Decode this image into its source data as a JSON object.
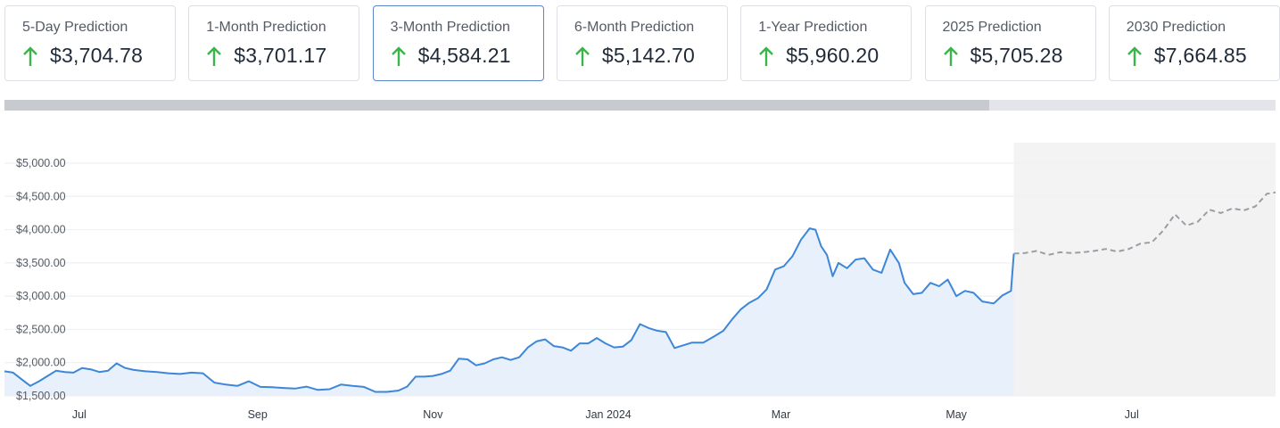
{
  "cards": [
    {
      "label": "5-Day Prediction",
      "value": "$3,704.78",
      "arrow_icon": "arrow-up-icon",
      "active": false
    },
    {
      "label": "1-Month Prediction",
      "value": "$3,701.17",
      "arrow_icon": "arrow-up-icon",
      "active": false
    },
    {
      "label": "3-Month Prediction",
      "value": "$4,584.21",
      "arrow_icon": "arrow-up-icon",
      "active": true
    },
    {
      "label": "6-Month Prediction",
      "value": "$5,142.70",
      "arrow_icon": "arrow-up-icon",
      "active": false
    },
    {
      "label": "1-Year Prediction",
      "value": "$5,960.20",
      "arrow_icon": "arrow-up-icon",
      "active": false
    },
    {
      "label": "2025 Prediction",
      "value": "$5,705.28",
      "arrow_icon": "arrow-up-icon",
      "active": false
    },
    {
      "label": "2030 Prediction",
      "value": "$7,664.85",
      "arrow_icon": "arrow-up-icon",
      "active": false
    }
  ],
  "colors": {
    "up_arrow": "#3ab54a",
    "active_border": "#5b87c9",
    "historical_line": "#3d86d8",
    "historical_fill": "#e8f0fb",
    "forecast_line": "#9a9ea5",
    "forecast_fill": "#f2f2f2",
    "grid": "#eceef1"
  },
  "scrollbar": {
    "thumb_fraction": 0.775
  },
  "chart_data": {
    "type": "line",
    "title": "",
    "xlabel": "",
    "ylabel": "",
    "ylim": [
      1400,
      5150
    ],
    "xlim": [
      "2023-06-05",
      "2024-08-20"
    ],
    "grid": true,
    "yticks": [
      1500,
      2000,
      2500,
      3000,
      3500,
      4000,
      4500,
      5000
    ],
    "ytick_labels": [
      "$1,500.00",
      "$2,000.00",
      "$2,500.00",
      "$3,000.00",
      "$3,500.00",
      "$4,000.00",
      "$4,500.00",
      "$5,000.00"
    ],
    "xticks": [
      {
        "date": "2023-07-01",
        "label": "Jul"
      },
      {
        "date": "2023-09-01",
        "label": "Sep"
      },
      {
        "date": "2023-11-01",
        "label": "Nov"
      },
      {
        "date": "2024-01-01",
        "label": "Jan 2024"
      },
      {
        "date": "2024-03-01",
        "label": "Mar"
      },
      {
        "date": "2024-05-01",
        "label": "May"
      },
      {
        "date": "2024-07-01",
        "label": "Jul"
      }
    ],
    "series": [
      {
        "style": "solid",
        "points": [
          [
            "2023-06-05",
            1870
          ],
          [
            "2023-06-08",
            1850
          ],
          [
            "2023-06-11",
            1750
          ],
          [
            "2023-06-14",
            1650
          ],
          [
            "2023-06-17",
            1720
          ],
          [
            "2023-06-20",
            1800
          ],
          [
            "2023-06-23",
            1880
          ],
          [
            "2023-06-26",
            1860
          ],
          [
            "2023-06-29",
            1850
          ],
          [
            "2023-07-02",
            1920
          ],
          [
            "2023-07-05",
            1900
          ],
          [
            "2023-07-08",
            1860
          ],
          [
            "2023-07-11",
            1880
          ],
          [
            "2023-07-14",
            1990
          ],
          [
            "2023-07-17",
            1920
          ],
          [
            "2023-07-20",
            1890
          ],
          [
            "2023-07-24",
            1870
          ],
          [
            "2023-07-28",
            1860
          ],
          [
            "2023-08-01",
            1840
          ],
          [
            "2023-08-05",
            1830
          ],
          [
            "2023-08-09",
            1850
          ],
          [
            "2023-08-13",
            1840
          ],
          [
            "2023-08-17",
            1700
          ],
          [
            "2023-08-21",
            1670
          ],
          [
            "2023-08-25",
            1650
          ],
          [
            "2023-08-29",
            1720
          ],
          [
            "2023-09-02",
            1635
          ],
          [
            "2023-09-06",
            1630
          ],
          [
            "2023-09-10",
            1620
          ],
          [
            "2023-09-14",
            1610
          ],
          [
            "2023-09-18",
            1640
          ],
          [
            "2023-09-22",
            1590
          ],
          [
            "2023-09-26",
            1600
          ],
          [
            "2023-09-30",
            1670
          ],
          [
            "2023-10-04",
            1650
          ],
          [
            "2023-10-08",
            1635
          ],
          [
            "2023-10-12",
            1560
          ],
          [
            "2023-10-16",
            1560
          ],
          [
            "2023-10-20",
            1580
          ],
          [
            "2023-10-23",
            1640
          ],
          [
            "2023-10-26",
            1790
          ],
          [
            "2023-10-29",
            1790
          ],
          [
            "2023-11-01",
            1800
          ],
          [
            "2023-11-04",
            1830
          ],
          [
            "2023-11-07",
            1880
          ],
          [
            "2023-11-10",
            2060
          ],
          [
            "2023-11-13",
            2050
          ],
          [
            "2023-11-16",
            1960
          ],
          [
            "2023-11-19",
            1990
          ],
          [
            "2023-11-22",
            2050
          ],
          [
            "2023-11-25",
            2080
          ],
          [
            "2023-11-28",
            2040
          ],
          [
            "2023-12-01",
            2080
          ],
          [
            "2023-12-04",
            2230
          ],
          [
            "2023-12-07",
            2320
          ],
          [
            "2023-12-10",
            2350
          ],
          [
            "2023-12-13",
            2250
          ],
          [
            "2023-12-16",
            2230
          ],
          [
            "2023-12-19",
            2180
          ],
          [
            "2023-12-22",
            2290
          ],
          [
            "2023-12-25",
            2290
          ],
          [
            "2023-12-28",
            2370
          ],
          [
            "2023-12-31",
            2290
          ],
          [
            "2024-01-03",
            2230
          ],
          [
            "2024-01-06",
            2240
          ],
          [
            "2024-01-09",
            2340
          ],
          [
            "2024-01-12",
            2580
          ],
          [
            "2024-01-15",
            2520
          ],
          [
            "2024-01-18",
            2480
          ],
          [
            "2024-01-21",
            2460
          ],
          [
            "2024-01-24",
            2220
          ],
          [
            "2024-01-27",
            2260
          ],
          [
            "2024-01-30",
            2300
          ],
          [
            "2024-02-03",
            2300
          ],
          [
            "2024-02-07",
            2400
          ],
          [
            "2024-02-10",
            2480
          ],
          [
            "2024-02-13",
            2650
          ],
          [
            "2024-02-16",
            2800
          ],
          [
            "2024-02-19",
            2900
          ],
          [
            "2024-02-22",
            2970
          ],
          [
            "2024-02-25",
            3100
          ],
          [
            "2024-02-28",
            3400
          ],
          [
            "2024-03-02",
            3450
          ],
          [
            "2024-03-05",
            3600
          ],
          [
            "2024-03-08",
            3850
          ],
          [
            "2024-03-11",
            4020
          ],
          [
            "2024-03-13",
            4000
          ],
          [
            "2024-03-15",
            3750
          ],
          [
            "2024-03-17",
            3620
          ],
          [
            "2024-03-19",
            3300
          ],
          [
            "2024-03-21",
            3500
          ],
          [
            "2024-03-24",
            3420
          ],
          [
            "2024-03-27",
            3550
          ],
          [
            "2024-03-30",
            3570
          ],
          [
            "2024-04-02",
            3400
          ],
          [
            "2024-04-05",
            3350
          ],
          [
            "2024-04-08",
            3700
          ],
          [
            "2024-04-11",
            3500
          ],
          [
            "2024-04-13",
            3200
          ],
          [
            "2024-04-16",
            3030
          ],
          [
            "2024-04-19",
            3050
          ],
          [
            "2024-04-22",
            3200
          ],
          [
            "2024-04-25",
            3150
          ],
          [
            "2024-04-28",
            3250
          ],
          [
            "2024-05-01",
            3000
          ],
          [
            "2024-05-04",
            3080
          ],
          [
            "2024-05-07",
            3050
          ],
          [
            "2024-05-10",
            2920
          ],
          [
            "2024-05-14",
            2890
          ],
          [
            "2024-05-17",
            3010
          ],
          [
            "2024-05-20",
            3080
          ],
          [
            "2024-05-21",
            3640
          ]
        ]
      },
      {
        "style": "dashed",
        "points": [
          [
            "2024-05-21",
            3640
          ],
          [
            "2024-05-25",
            3650
          ],
          [
            "2024-05-29",
            3680
          ],
          [
            "2024-06-02",
            3620
          ],
          [
            "2024-06-06",
            3660
          ],
          [
            "2024-06-10",
            3650
          ],
          [
            "2024-06-14",
            3660
          ],
          [
            "2024-06-18",
            3680
          ],
          [
            "2024-06-22",
            3710
          ],
          [
            "2024-06-26",
            3670
          ],
          [
            "2024-06-30",
            3710
          ],
          [
            "2024-07-04",
            3790
          ],
          [
            "2024-07-08",
            3810
          ],
          [
            "2024-07-12",
            3990
          ],
          [
            "2024-07-16",
            4230
          ],
          [
            "2024-07-20",
            4060
          ],
          [
            "2024-07-24",
            4120
          ],
          [
            "2024-07-28",
            4300
          ],
          [
            "2024-08-01",
            4250
          ],
          [
            "2024-08-05",
            4320
          ],
          [
            "2024-08-09",
            4290
          ],
          [
            "2024-08-13",
            4350
          ],
          [
            "2024-08-17",
            4540
          ],
          [
            "2024-08-20",
            4560
          ]
        ]
      }
    ]
  }
}
